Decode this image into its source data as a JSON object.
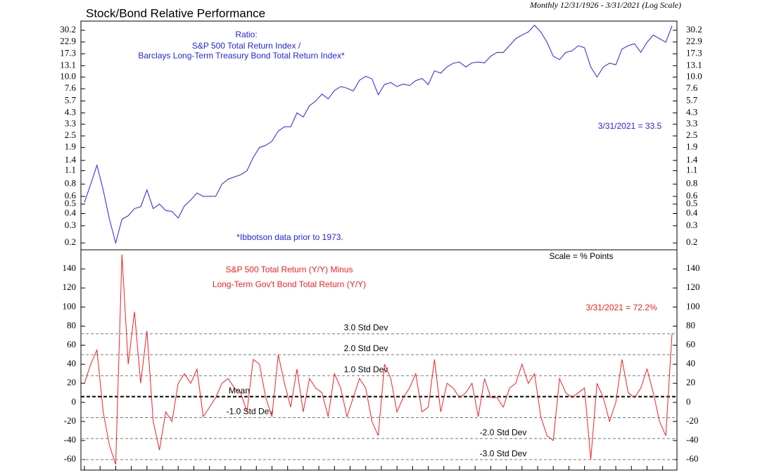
{
  "chart_data": [
    {
      "type": "line",
      "title": "Stock/Bond Relative Performance",
      "subtitle": "Monthly 12/31/1926 - 3/31/2021 (Log Scale)",
      "annotations": [
        "Ratio:",
        "S&P 500 Total Return Index /",
        "Barclays Long-Term Treasury Bond Total Return Index*",
        "3/31/2021 = 33.5",
        "*Ibbotson data prior to 1973."
      ],
      "log_scale": true,
      "color": "#2323e6",
      "ylim": [
        0.17,
        37.5
      ],
      "yticks": [
        0.2,
        0.3,
        0.4,
        0.5,
        0.6,
        0.8,
        1.1,
        1.4,
        1.9,
        2.5,
        3.3,
        4.3,
        5.7,
        7.6,
        {
          "value": 10,
          "label": "10.0"
        },
        13.1,
        17.3,
        22.9,
        30.2
      ],
      "values": [
        0.52,
        0.8,
        1.25,
        0.7,
        0.35,
        0.2,
        0.35,
        0.38,
        0.45,
        0.47,
        0.7,
        0.45,
        0.5,
        0.43,
        0.42,
        0.36,
        0.48,
        0.55,
        0.65,
        0.6,
        0.6,
        0.6,
        0.8,
        0.9,
        0.95,
        1.0,
        1.1,
        1.5,
        1.9,
        2.0,
        2.2,
        2.8,
        3.1,
        3.1,
        4.3,
        3.9,
        5.1,
        5.7,
        6.7,
        6.0,
        7.3,
        8.0,
        7.7,
        7.2,
        9.3,
        10.2,
        9.6,
        6.6,
        8.4,
        8.8,
        8.0,
        8.5,
        8.2,
        9.2,
        9.7,
        8.4,
        11.6,
        11.0,
        12.7,
        13.9,
        14.3,
        12.7,
        14.0,
        14.3,
        14.0,
        16.4,
        17.9,
        17.9,
        21.0,
        24.8,
        27.0,
        29.0,
        34.0,
        29.0,
        22.8,
        16.4,
        15.1,
        17.9,
        18.6,
        21.0,
        20.0,
        12.7,
        10.0,
        12.7,
        13.9,
        13.4,
        19.4,
        21.0,
        22.0,
        17.9,
        22.8,
        27.0,
        24.8,
        22.8,
        33.5
      ]
    },
    {
      "type": "line",
      "annotations": [
        "Scale = % Points",
        "S&P 500 Total Return (Y/Y) Minus",
        "Long-Term Gov't Bond Total Return (Y/Y)",
        "3/31/2021 = 72.2%"
      ],
      "color": "#ee2222",
      "ylim": [
        -71,
        160
      ],
      "yticks": [
        -60,
        -40,
        -20,
        0,
        20,
        40,
        60,
        80,
        100,
        120,
        140
      ],
      "reference_lines": [
        {
          "value": 72,
          "label": "3.0 Std Dev"
        },
        {
          "value": 50,
          "label": "2.0 Std Dev"
        },
        {
          "value": 28,
          "label": "1.0 Std Dev"
        },
        {
          "value": 6,
          "label": "Mean"
        },
        {
          "value": -16,
          "label": "-1.0 Std Dev"
        },
        {
          "value": -38,
          "label": "-2.0 Std Dev"
        },
        {
          "value": -60,
          "label": "-3.0 Std Dev"
        }
      ],
      "values": [
        20,
        40,
        55,
        -10,
        -45,
        -65,
        155,
        40,
        95,
        20,
        75,
        -20,
        -50,
        -10,
        -20,
        20,
        30,
        20,
        35,
        -15,
        -5,
        5,
        20,
        25,
        15,
        10,
        -10,
        45,
        40,
        5,
        -15,
        50,
        20,
        -5,
        35,
        -10,
        25,
        15,
        10,
        -15,
        30,
        15,
        -15,
        5,
        25,
        15,
        -20,
        -35,
        40,
        25,
        -10,
        5,
        15,
        30,
        -10,
        -5,
        45,
        -10,
        20,
        15,
        5,
        10,
        20,
        -15,
        25,
        5,
        5,
        -5,
        15,
        20,
        40,
        20,
        30,
        -15,
        -35,
        -40,
        25,
        10,
        5,
        10,
        15,
        -60,
        20,
        5,
        -20,
        0,
        45,
        10,
        5,
        15,
        35,
        10,
        -20,
        -35,
        72.2
      ]
    }
  ]
}
